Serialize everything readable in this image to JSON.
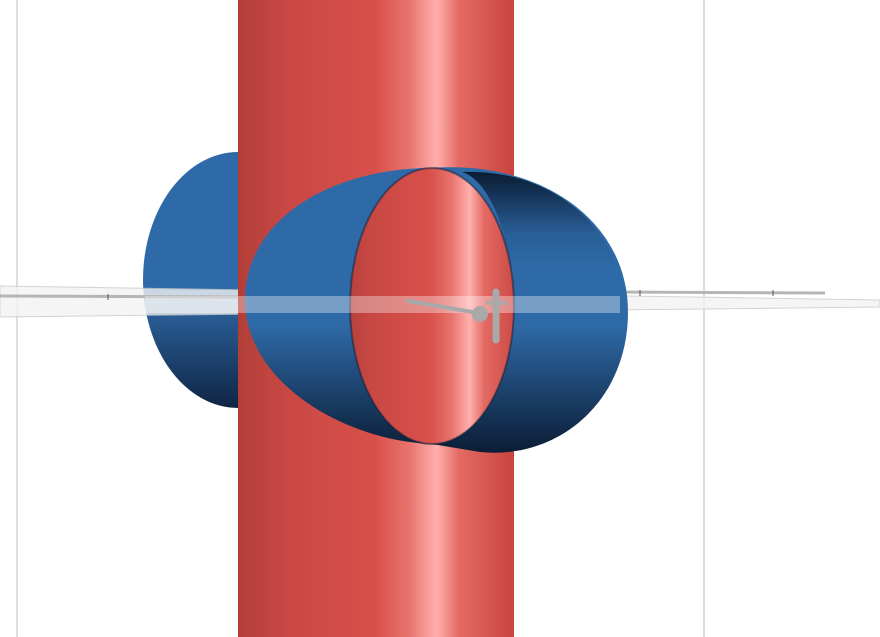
{
  "scene": {
    "background_color": "#ffffff",
    "objects": [
      {
        "name": "vertical-cylinder",
        "color": "#d9504a",
        "highlight": "#ffb0ad",
        "shadow": "#b23e38"
      },
      {
        "name": "horizontal-cylinder",
        "color": "#2f6aa8",
        "inner_shadow": "#0e2440"
      },
      {
        "name": "ground-plane",
        "color": "#e4e4e4"
      },
      {
        "name": "t-bar-fixture",
        "color": "#a9a9a9"
      }
    ]
  }
}
